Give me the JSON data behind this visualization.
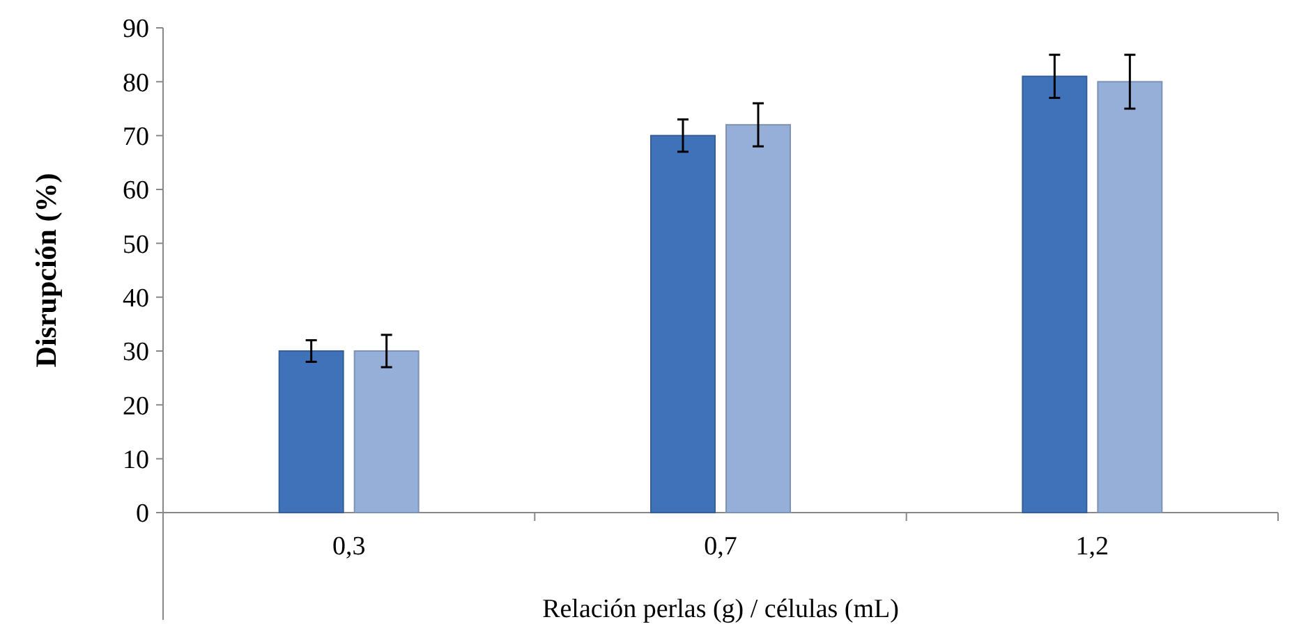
{
  "chart_data": {
    "type": "bar",
    "xlabel": "Relación perlas (g) / células (mL)",
    "ylabel": "Disrupción (%)",
    "categories": [
      "0,3",
      "0,7",
      "1,2"
    ],
    "series": [
      {
        "color": "#3f72b8",
        "values": [
          30,
          70,
          81
        ],
        "errors": [
          2,
          3,
          4
        ]
      },
      {
        "color": "#95afd9",
        "values": [
          30,
          72,
          80
        ],
        "errors": [
          3,
          4,
          5
        ]
      }
    ],
    "ylim": [
      0,
      90
    ],
    "yticks": [
      0,
      10,
      20,
      30,
      40,
      50,
      60,
      70,
      80,
      90
    ],
    "grid": false
  }
}
